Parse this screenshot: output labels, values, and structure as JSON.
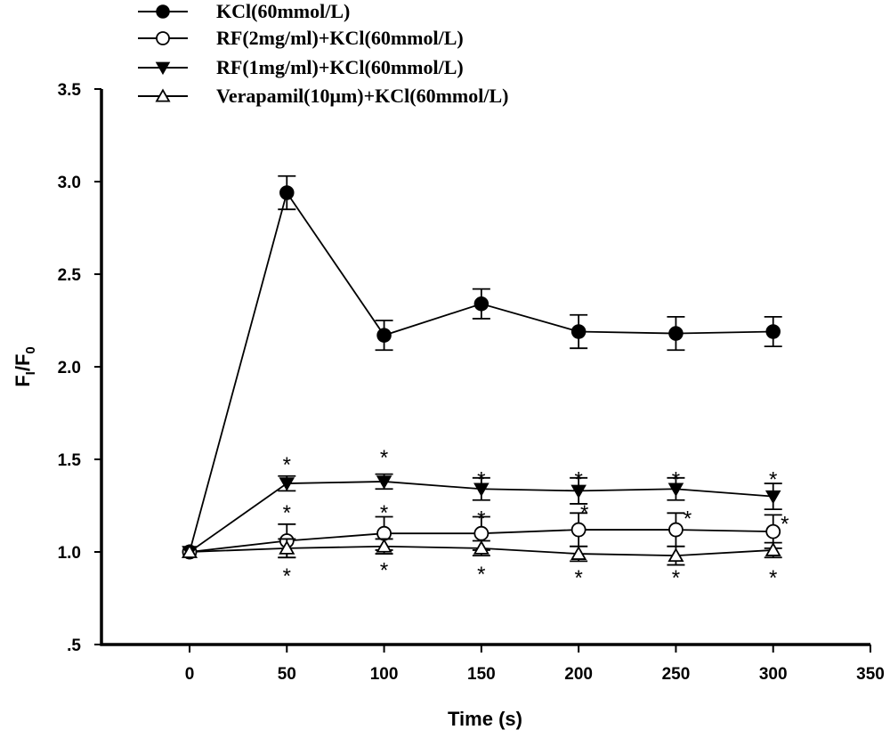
{
  "chart_data": {
    "type": "line",
    "title": "",
    "xlabel": "Time (s)",
    "ylabel": "F_I/F_0",
    "ylabel_parts": {
      "main1": "F",
      "sub1": "I",
      "slash": "/",
      "main2": "F",
      "sub2": "0"
    },
    "xlim": [
      -45,
      350
    ],
    "ylim": [
      0.5,
      3.5
    ],
    "x_ticks": [
      0,
      50,
      100,
      150,
      200,
      250,
      300,
      350
    ],
    "x_tick_labels": [
      "0",
      "50",
      "100",
      "150",
      "200",
      "250",
      "300",
      "350"
    ],
    "y_ticks": [
      0.5,
      1.0,
      1.5,
      2.0,
      2.5,
      3.0,
      3.5
    ],
    "y_tick_labels": [
      ".5",
      "1.0",
      "1.5",
      "2.0",
      "2.5",
      "3.0",
      "3.5"
    ],
    "grid": false,
    "legend_position": "top-left",
    "x": [
      0,
      50,
      100,
      150,
      200,
      250,
      300
    ],
    "series": [
      {
        "name": "KCl(60mmol/L)",
        "marker": "filled-circle",
        "values": [
          1.0,
          2.94,
          2.17,
          2.34,
          2.19,
          2.18,
          2.19
        ],
        "errors": [
          0,
          0.09,
          0.08,
          0.08,
          0.09,
          0.09,
          0.08
        ]
      },
      {
        "name": "RF(2mg/ml)+KCl(60mmol/L)",
        "marker": "open-circle",
        "values": [
          1.0,
          1.06,
          1.1,
          1.1,
          1.12,
          1.12,
          1.11
        ],
        "errors": [
          0,
          0.09,
          0.09,
          0.09,
          0.09,
          0.09,
          0.09
        ]
      },
      {
        "name": "RF(1mg/ml)+KCl(60mmol/L)",
        "marker": "filled-triangle-down",
        "values": [
          1.0,
          1.37,
          1.38,
          1.34,
          1.33,
          1.34,
          1.3
        ],
        "errors": [
          0,
          0.04,
          0.04,
          0.06,
          0.07,
          0.06,
          0.07
        ]
      },
      {
        "name": "Verapamil(10μm)+KCl(60mmol/L)",
        "marker": "open-triangle-up",
        "values": [
          1.0,
          1.02,
          1.03,
          1.02,
          0.99,
          0.98,
          1.01
        ],
        "errors": [
          0,
          0.05,
          0.04,
          0.04,
          0.04,
          0.05,
          0.04
        ]
      }
    ],
    "annotations": {
      "significance_symbol": "*",
      "marks": [
        {
          "x": 50,
          "y": 1.49
        },
        {
          "x": 50,
          "y": 1.23
        },
        {
          "x": 50,
          "y": 0.89
        },
        {
          "x": 100,
          "y": 1.53
        },
        {
          "x": 100,
          "y": 1.23
        },
        {
          "x": 100,
          "y": 0.92
        },
        {
          "x": 150,
          "y": 1.41
        },
        {
          "x": 150,
          "y": 1.2
        },
        {
          "x": 150,
          "y": 0.9
        },
        {
          "x": 200,
          "y": 1.41
        },
        {
          "x": 203,
          "y": 1.23
        },
        {
          "x": 200,
          "y": 0.88
        },
        {
          "x": 250,
          "y": 1.41
        },
        {
          "x": 256,
          "y": 1.2
        },
        {
          "x": 250,
          "y": 0.88
        },
        {
          "x": 300,
          "y": 1.41
        },
        {
          "x": 306,
          "y": 1.17
        },
        {
          "x": 300,
          "y": 0.88
        }
      ]
    }
  }
}
